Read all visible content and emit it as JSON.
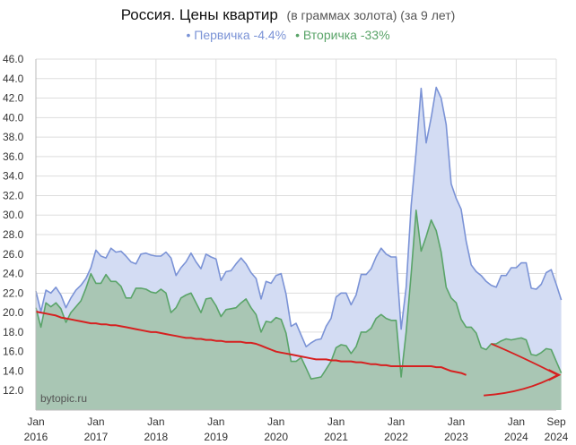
{
  "chart_data": {
    "type": "area",
    "title": "Россия. Цены квартир",
    "title_suffix": "(в граммах золота) (за 9 лет)",
    "xlabel": "",
    "ylabel": "",
    "ylim": [
      10,
      46
    ],
    "y_ticks": [
      "46.0",
      "44.0",
      "42.0",
      "40.0",
      "38.0",
      "36.0",
      "34.0",
      "32.0",
      "30.0",
      "28.0",
      "26.0",
      "24.0",
      "22.0",
      "20.0",
      "18.0",
      "16.0",
      "14.0",
      "12.0"
    ],
    "x_ticks": [
      {
        "month": 0,
        "line1": "Jan",
        "line2": "2016"
      },
      {
        "month": 12,
        "line1": "Jan",
        "line2": "2017"
      },
      {
        "month": 24,
        "line1": "Jan",
        "line2": "2018"
      },
      {
        "month": 36,
        "line1": "Jan",
        "line2": "2019"
      },
      {
        "month": 48,
        "line1": "Jan",
        "line2": "2020"
      },
      {
        "month": 60,
        "line1": "Jan",
        "line2": "2021"
      },
      {
        "month": 72,
        "line1": "Jan",
        "line2": "2022"
      },
      {
        "month": 84,
        "line1": "Jan",
        "line2": "2023"
      },
      {
        "month": 96,
        "line1": "Jan",
        "line2": "2024"
      },
      {
        "month": 104,
        "line1": "Sep",
        "line2": "2024"
      }
    ],
    "grid": true,
    "legend_position": "top-center",
    "watermark": "bytopic.ru",
    "series": [
      {
        "name": "Первичка -4.4%",
        "color": "#7b93d6",
        "fill": "#d3dcf3",
        "values": [
          22.2,
          20.1,
          22.3,
          22.0,
          22.6,
          21.8,
          20.5,
          21.5,
          22.3,
          22.8,
          23.5,
          24.6,
          26.4,
          25.8,
          25.6,
          26.6,
          26.2,
          26.3,
          25.8,
          25.2,
          25.0,
          26.0,
          26.1,
          25.9,
          25.8,
          25.8,
          26.2,
          25.6,
          23.8,
          24.6,
          25.2,
          26.1,
          25.2,
          24.5,
          26.0,
          25.7,
          25.5,
          23.3,
          24.2,
          24.3,
          25.0,
          25.6,
          25.0,
          24.1,
          23.5,
          21.4,
          23.2,
          23.0,
          23.8,
          24.0,
          21.9,
          18.6,
          18.9,
          17.7,
          16.5,
          16.9,
          17.2,
          17.3,
          18.6,
          19.4,
          21.6,
          22.0,
          22.0,
          20.8,
          21.8,
          23.9,
          23.9,
          24.5,
          25.7,
          26.6,
          26.0,
          25.7,
          25.7,
          18.3,
          22.6,
          31.0,
          36.5,
          43.0,
          37.4,
          40.0,
          43.1,
          42.0,
          39.3,
          33.2,
          31.7,
          30.6,
          27.3,
          24.9,
          24.2,
          23.8,
          23.2,
          22.8,
          22.6,
          23.8,
          23.8,
          24.6,
          24.6,
          25.1,
          25.1,
          22.5,
          22.4,
          22.9,
          24.1,
          24.4,
          22.9,
          21.3
        ],
        "end_values": [
          22.2,
          21.3
        ]
      },
      {
        "name": "Вторичка -33%",
        "color": "#5aa469",
        "fill": "#a7c4b0",
        "values": [
          20.5,
          18.5,
          21.0,
          20.6,
          21.0,
          20.4,
          19.0,
          20.0,
          20.6,
          21.2,
          22.5,
          24.0,
          23.0,
          23.0,
          23.9,
          23.2,
          23.2,
          22.7,
          21.5,
          21.5,
          22.5,
          22.5,
          22.4,
          22.1,
          22.0,
          22.4,
          22.0,
          20.0,
          20.5,
          21.5,
          21.8,
          22.0,
          21.0,
          20.0,
          21.4,
          21.5,
          20.7,
          19.6,
          20.3,
          20.4,
          20.5,
          21.0,
          21.4,
          20.5,
          19.8,
          18.0,
          19.1,
          19.0,
          19.5,
          19.3,
          17.9,
          15.0,
          15.0,
          15.4,
          14.3,
          13.2,
          13.3,
          13.4,
          14.2,
          15.0,
          16.4,
          16.7,
          16.6,
          15.8,
          16.5,
          18.0,
          18.0,
          18.4,
          19.4,
          19.8,
          19.4,
          19.2,
          19.2,
          13.4,
          18.0,
          24.0,
          30.5,
          26.3,
          27.8,
          29.5,
          28.4,
          26.2,
          22.6,
          21.5,
          21.0,
          19.3,
          18.5,
          18.5,
          17.9,
          16.4,
          16.2,
          16.8,
          16.8,
          17.1,
          17.3,
          17.2,
          17.3,
          17.4,
          17.2,
          15.7,
          15.6,
          15.9,
          16.3,
          16.2,
          15.0,
          13.8
        ],
        "end_values": [
          20.5,
          13.8
        ]
      },
      {
        "name": "",
        "color": "#d62020",
        "values": [
          20.1,
          20.0,
          19.9,
          19.8,
          19.7,
          19.5,
          19.4,
          19.3,
          19.2,
          19.1,
          19.0,
          18.9,
          18.9,
          18.8,
          18.8,
          18.7,
          18.7,
          18.6,
          18.5,
          18.4,
          18.3,
          18.2,
          18.1,
          18.0,
          18.0,
          17.9,
          17.8,
          17.7,
          17.6,
          17.5,
          17.4,
          17.4,
          17.3,
          17.3,
          17.2,
          17.2,
          17.1,
          17.1,
          17.0,
          17.0,
          17.0,
          17.0,
          16.9,
          16.9,
          16.8,
          16.6,
          16.4,
          16.2,
          16.0,
          15.9,
          15.8,
          15.7,
          15.6,
          15.5,
          15.4,
          15.3,
          15.2,
          15.2,
          15.2,
          15.1,
          15.1,
          15.0,
          15.0,
          15.0,
          14.9,
          14.9,
          14.8,
          14.7,
          14.7,
          14.6,
          14.6,
          14.5,
          14.5,
          14.5,
          14.5,
          14.5,
          14.5,
          14.5,
          14.5,
          14.5,
          14.4,
          14.4,
          14.2,
          14.0,
          13.9,
          13.8,
          13.6
        ]
      }
    ]
  }
}
